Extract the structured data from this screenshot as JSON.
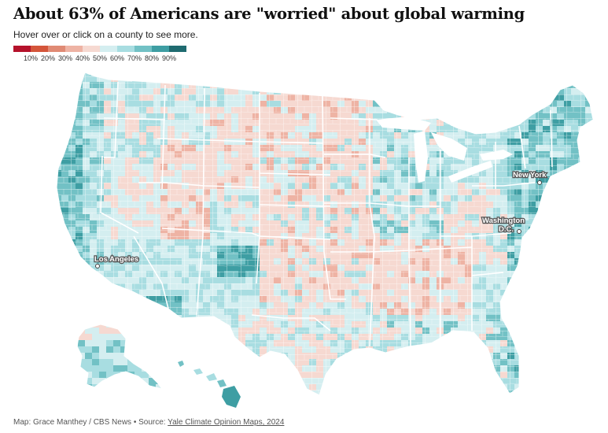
{
  "title": "About 63% of Americans are \"worried\" about global warming",
  "subtitle": "Hover over or click on a county to see more.",
  "legend": {
    "colors": [
      "#b5122b",
      "#d4553a",
      "#e08a74",
      "#eeb3a4",
      "#f6d9d1",
      "#d4eef0",
      "#a8dde1",
      "#72c1c5",
      "#3e9ea3",
      "#1f6b70"
    ],
    "labels": [
      "10%",
      "20%",
      "30%",
      "40%",
      "50%",
      "60%",
      "70%",
      "80%",
      "90%"
    ]
  },
  "cities": {
    "new_york": "New York",
    "washington": "Washington",
    "washington_dc": "D.C.",
    "los_angeles": "Los Angeles"
  },
  "footer": {
    "credit": "Map: Grace Manthey / CBS News • Source: ",
    "source_link": "Yale Climate Opinion Maps, 2024"
  }
}
